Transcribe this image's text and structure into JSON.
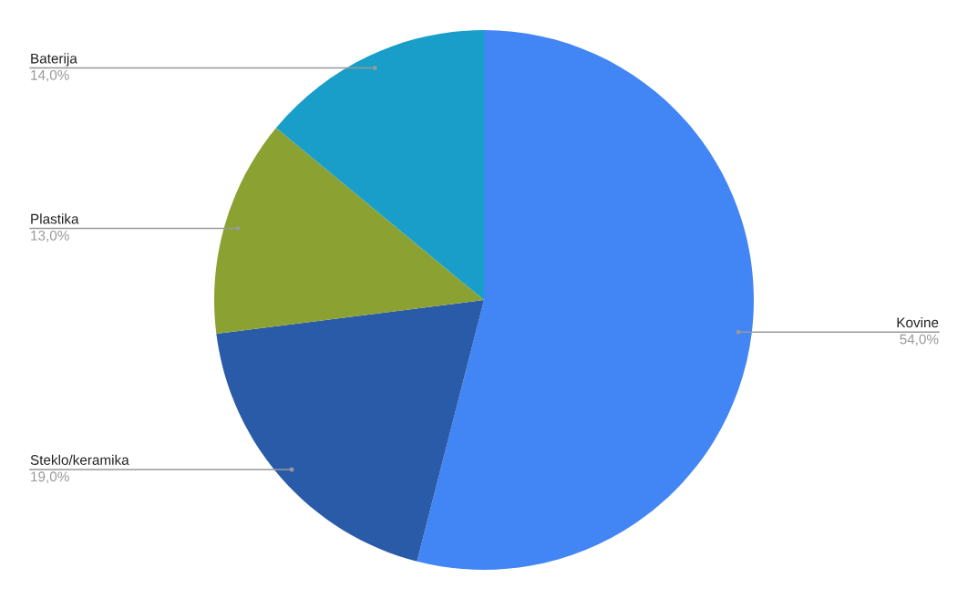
{
  "chart_data": {
    "type": "pie",
    "categories": [
      "Kovine",
      "Steklo/keramika",
      "Plastika",
      "Baterija"
    ],
    "values": [
      54,
      19,
      13,
      14
    ],
    "value_labels": [
      "54,0%",
      "19,0%",
      "13,0%",
      "14,0%"
    ],
    "colors": [
      "#4285f4",
      "#2a5ba8",
      "#8ba232",
      "#199ec9"
    ]
  }
}
